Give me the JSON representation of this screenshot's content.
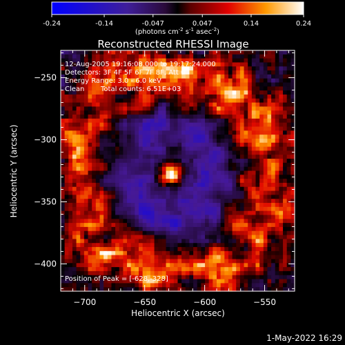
{
  "colorbar": {
    "tick_labels": [
      "-0.24",
      "-0.14",
      "-0.047",
      "0.047",
      "0.14",
      "0.24"
    ],
    "units_prefix": "(photons cm",
    "units_sup1": "-2",
    "units_mid1": " s",
    "units_sup2": "-1",
    "units_mid2": " asec",
    "units_sup3": "-2",
    "units_suffix": ")"
  },
  "chart_data": {
    "type": "heatmap",
    "title": "Reconstructed RHESSI Image",
    "xlabel": "Heliocentric X (arcsec)",
    "ylabel": "Heliocentric Y (arcsec)",
    "xlim": [
      -720,
      -525
    ],
    "ylim": [
      -422,
      -228
    ],
    "xticks": [
      -700,
      -650,
      -600,
      -550
    ],
    "yticks": [
      -250,
      -300,
      -350,
      -400
    ],
    "xtick_labels": [
      "−700",
      "−650",
      "−600",
      "−550"
    ],
    "ytick_labels": [
      "−250",
      "−300",
      "−350",
      "−400"
    ],
    "peak": {
      "x": -628,
      "y": -328
    },
    "value_range": [
      -0.24,
      0.24
    ],
    "colormap": "blue-purple-red-yellow-white",
    "annotations": {
      "line1": "12-Aug-2005 19:16:08.000 to 19:17:24.000",
      "line2": "Detectors: 3F 4F 5F 6F 7F 8F, Att 0",
      "line3": "Energy Range: 3.0 - 6.0 keV",
      "line4_label": "Clean",
      "line4_counts": "Total counts: 6.51E+03",
      "peak_text": "Position of Peak = [-628,-328]"
    }
  },
  "footer": {
    "timestamp": "1-May-2022 16:29"
  }
}
